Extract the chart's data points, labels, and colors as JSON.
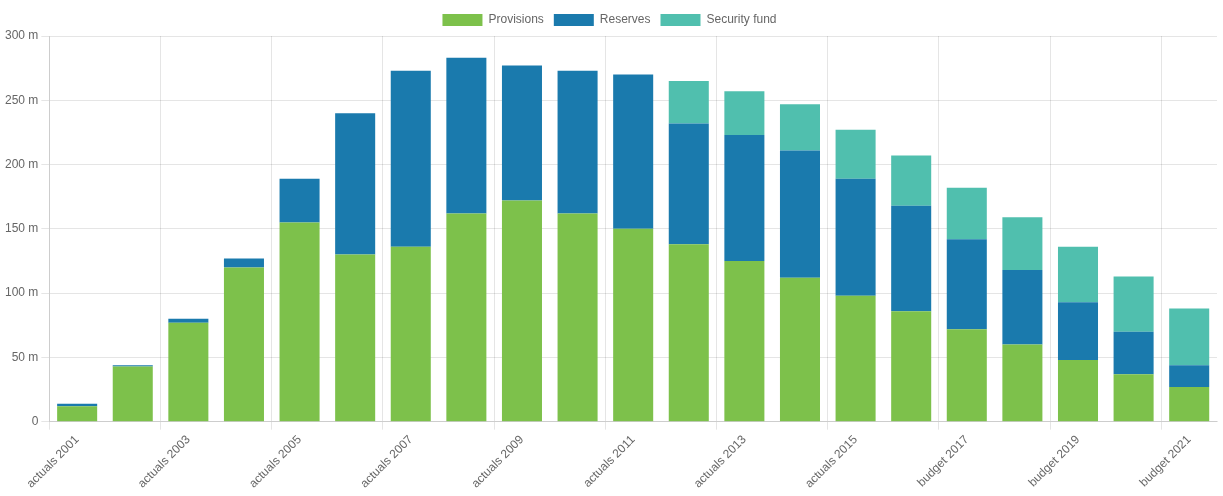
{
  "chart_data": {
    "type": "bar",
    "stacked": true,
    "grid": true,
    "legend": "top",
    "categories": [
      "actuals 2001",
      null,
      "actuals 2003",
      null,
      "actuals 2005",
      null,
      "actuals 2007",
      null,
      "actuals 2009",
      null,
      "actuals 2011",
      null,
      "actuals 2013",
      null,
      "actuals 2015",
      null,
      "budget 2017",
      null,
      "budget 2019",
      null,
      "budget 2021"
    ],
    "series": [
      {
        "name": "Provisions",
        "color": "#7dc14b",
        "values": [
          12,
          43,
          77,
          120,
          155,
          130,
          136,
          162,
          172,
          162,
          150,
          138,
          125,
          112,
          98,
          86,
          72,
          60,
          48,
          37,
          27
        ]
      },
      {
        "name": "Reserves",
        "color": "#1a7aad",
        "values": [
          2,
          1,
          3,
          7,
          34,
          110,
          137,
          121,
          105,
          111,
          120,
          94,
          98,
          99,
          91,
          82,
          70,
          58,
          45,
          33,
          17
        ]
      },
      {
        "name": "Security fund",
        "color": "#50bfae",
        "values": [
          null,
          null,
          null,
          null,
          null,
          null,
          null,
          null,
          null,
          null,
          null,
          33,
          34,
          36,
          38,
          39,
          40,
          41,
          43,
          43,
          44
        ]
      }
    ],
    "ylim": [
      0,
      300
    ],
    "yticks": [
      {
        "value": 0,
        "label": "0"
      },
      {
        "value": 50,
        "label": "50 m"
      },
      {
        "value": 100,
        "label": "100 m"
      },
      {
        "value": 150,
        "label": "150 m"
      },
      {
        "value": 200,
        "label": "200 m"
      },
      {
        "value": 250,
        "label": "250 m"
      },
      {
        "value": 300,
        "label": "300 m"
      }
    ]
  }
}
